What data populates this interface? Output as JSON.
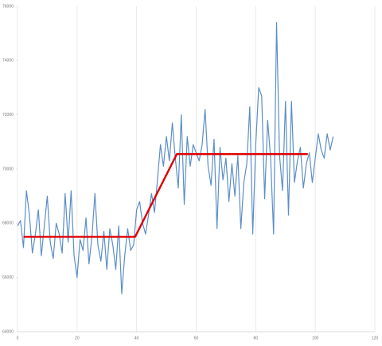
{
  "chart_data": {
    "type": "line",
    "xlim": [
      0,
      120
    ],
    "xticks": [
      0,
      20,
      40,
      60,
      80,
      100,
      120
    ],
    "ylim": [
      64000,
      76000
    ],
    "yticks": [
      64000,
      66000,
      68000,
      70000,
      72000,
      74000,
      76000
    ],
    "grid": "x",
    "series": [
      {
        "color": "#5b8ec9",
        "x": [
          0,
          1,
          2,
          3,
          4,
          5,
          6,
          7,
          8,
          9,
          10,
          11,
          12,
          13,
          14,
          15,
          16,
          17,
          18,
          19,
          20,
          21,
          22,
          23,
          24,
          25,
          26,
          27,
          28,
          29,
          30,
          31,
          32,
          33,
          34,
          35,
          36,
          37,
          38,
          39,
          40,
          41,
          42,
          43,
          44,
          45,
          46,
          47,
          48,
          49,
          50,
          51,
          52,
          53,
          54,
          55,
          56,
          57,
          58,
          59,
          60,
          61,
          62,
          63,
          64,
          65,
          66,
          67,
          68,
          69,
          70,
          71,
          72,
          73,
          74,
          75,
          76,
          77,
          78,
          79,
          80,
          81,
          82,
          83,
          84,
          85,
          86,
          87,
          88,
          89,
          90,
          91,
          92,
          93,
          94,
          95,
          96,
          97,
          98,
          99,
          100,
          101,
          102,
          103,
          104,
          105,
          106
        ],
        "values": [
          67900,
          68100,
          67100,
          69200,
          68300,
          66900,
          67600,
          68500,
          66800,
          67900,
          69000,
          67300,
          66700,
          68000,
          67600,
          66900,
          69100,
          67300,
          69200,
          66800,
          66000,
          67400,
          67000,
          68200,
          66500,
          67500,
          69100,
          67200,
          66600,
          67700,
          66300,
          67800,
          67200,
          66300,
          67900,
          65400,
          66800,
          67800,
          67000,
          67200,
          68500,
          68800,
          68000,
          67600,
          68300,
          69100,
          68400,
          69600,
          70900,
          70100,
          71200,
          70300,
          71700,
          70400,
          69300,
          72000,
          68700,
          71200,
          70100,
          70900,
          70600,
          70300,
          70900,
          72200,
          70100,
          69400,
          71100,
          67800,
          70800,
          69600,
          70400,
          68800,
          70200,
          69000,
          70500,
          67800,
          69500,
          70200,
          72300,
          67600,
          70900,
          73000,
          72700,
          68900,
          71800,
          70400,
          67600,
          75400,
          70500,
          69200,
          72500,
          68300,
          72500,
          69500,
          70300,
          70800,
          69300,
          70200,
          70600,
          69500,
          70400,
          71300,
          70700,
          70400,
          71300,
          70700,
          71200
        ]
      },
      {
        "color": "#e00000",
        "x": [
          2,
          39.5,
          53.5,
          97.5
        ],
        "values": [
          67500,
          67500,
          70550,
          70550
        ]
      }
    ]
  }
}
